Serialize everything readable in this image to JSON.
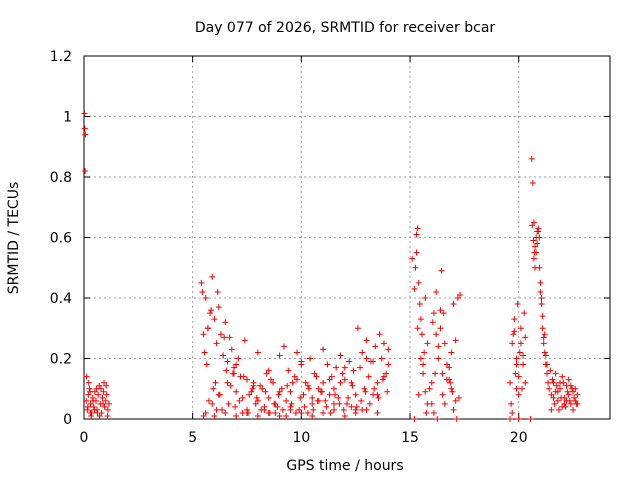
{
  "chart_data": {
    "type": "scatter",
    "title": "Day 077 of 2026, SRMTID for receiver bcar",
    "xlabel": "GPS time / hours",
    "ylabel": "SRMTID / TECUs",
    "xlim": [
      0,
      24.2
    ],
    "ylim": [
      0,
      1.2
    ],
    "grid": true,
    "marker": "+",
    "color": "#ff0000",
    "xticks": [
      0,
      5,
      10,
      15,
      20
    ],
    "xtick_labels": [
      "0",
      "5",
      "10",
      "15",
      "20"
    ],
    "yticks": [
      0,
      0.2,
      0.4,
      0.6,
      0.8,
      1,
      1.2
    ],
    "ytick_labels": [
      "0",
      "0.2",
      "0.4",
      "0.6",
      "0.8",
      "1",
      "1.2"
    ],
    "series": [
      {
        "name": "SRMTID",
        "x": [
          0.02,
          0.04,
          0.06,
          0.05,
          0.1,
          0.15,
          0.2,
          0.25,
          0.3,
          0.35,
          0.4,
          0.45,
          0.5,
          0.55,
          0.6,
          0.65,
          0.7,
          0.75,
          0.8,
          0.85,
          0.9,
          0.95,
          1.0,
          1.05,
          1.1,
          1.15,
          0.12,
          0.22,
          0.33,
          0.48,
          0.62,
          0.78,
          0.92,
          1.08,
          0.18,
          0.28,
          0.42,
          0.58,
          0.72,
          0.88,
          1.02,
          0.3,
          5.4,
          5.5,
          5.6,
          5.7,
          5.8,
          5.9,
          6.0,
          6.1,
          6.2,
          6.3,
          6.4,
          6.5,
          6.6,
          6.7,
          6.8,
          6.9,
          7.0,
          7.2,
          7.4,
          7.6,
          7.8,
          8.0,
          8.2,
          8.4,
          8.6,
          8.8,
          9.0,
          9.2,
          9.4,
          9.6,
          9.8,
          10.0,
          10.2,
          10.4,
          10.6,
          10.8,
          11.0,
          11.2,
          11.4,
          11.6,
          11.8,
          12.0,
          12.2,
          12.4,
          12.6,
          12.8,
          13.0,
          13.2,
          13.4,
          13.6,
          13.8,
          14.0,
          5.45,
          5.65,
          5.85,
          6.05,
          6.25,
          6.45,
          6.65,
          6.85,
          7.1,
          7.3,
          7.5,
          7.7,
          7.9,
          8.1,
          8.3,
          8.5,
          8.7,
          8.9,
          9.1,
          9.3,
          9.5,
          9.7,
          9.9,
          10.1,
          10.3,
          10.5,
          10.7,
          10.9,
          11.1,
          11.3,
          11.5,
          11.7,
          11.9,
          12.1,
          12.3,
          12.5,
          12.7,
          12.9,
          13.1,
          13.3,
          13.5,
          13.7,
          13.9,
          5.55,
          5.75,
          5.95,
          6.15,
          6.35,
          6.55,
          6.75,
          6.95,
          7.15,
          7.35,
          7.55,
          7.75,
          7.95,
          8.15,
          8.35,
          8.55,
          8.75,
          8.95,
          9.15,
          9.35,
          9.55,
          9.75,
          9.95,
          10.15,
          10.35,
          10.55,
          10.75,
          10.95,
          11.15,
          11.35,
          11.55,
          11.75,
          11.95,
          12.15,
          12.35,
          12.55,
          12.75,
          12.95,
          13.15,
          13.35,
          13.55,
          13.75,
          13.95,
          5.6,
          5.9,
          6.2,
          6.6,
          7.0,
          7.5,
          8.0,
          8.5,
          9.0,
          9.5,
          10.0,
          10.5,
          11.0,
          11.5,
          12.0,
          12.5,
          13.0,
          13.5,
          14.0,
          5.7,
          6.1,
          6.4,
          6.9,
          7.3,
          7.8,
          8.3,
          8.8,
          9.3,
          9.8,
          10.3,
          10.8,
          11.3,
          11.8,
          12.3,
          12.8,
          13.3,
          13.8,
          5.5,
          6.0,
          6.5,
          7.0,
          7.5,
          8.0,
          8.5,
          9.0,
          9.5,
          10.0,
          10.5,
          11.0,
          11.5,
          12.0,
          12.5,
          13.0,
          13.5,
          15.1,
          15.2,
          15.3,
          15.35,
          15.4,
          15.45,
          15.5,
          15.55,
          15.6,
          15.7,
          15.8,
          15.9,
          16.0,
          16.1,
          16.2,
          16.3,
          16.4,
          16.5,
          16.6,
          16.7,
          16.8,
          16.9,
          17.0,
          17.1,
          17.2,
          17.3,
          15.25,
          15.65,
          16.05,
          16.45,
          16.85,
          17.25,
          15.4,
          15.6,
          15.8,
          16.0,
          16.2,
          16.4,
          16.6,
          16.8,
          17.0,
          15.3,
          15.5,
          15.7,
          16.1,
          16.3,
          16.5,
          16.7,
          16.9,
          17.1,
          15.35,
          15.75,
          16.15,
          16.55,
          16.95,
          15.2,
          16.25,
          17.15,
          19.6,
          19.7,
          19.8,
          19.9,
          20.0,
          20.1,
          20.2,
          20.3,
          19.65,
          19.75,
          19.85,
          19.95,
          20.05,
          20.15,
          20.25,
          19.7,
          19.9,
          20.1,
          20.3,
          19.8,
          20.0,
          20.2,
          19.6,
          20.0,
          19.9,
          20.6,
          20.65,
          20.7,
          20.75,
          20.8,
          20.85,
          20.9,
          20.95,
          21.0,
          21.05,
          21.1,
          21.15,
          21.2,
          21.25,
          21.3,
          21.35,
          21.4,
          21.5,
          21.6,
          21.7,
          21.8,
          21.9,
          22.0,
          22.1,
          22.2,
          22.3,
          22.4,
          22.5,
          22.6,
          22.7,
          20.7,
          20.8,
          20.9,
          21.0,
          21.1,
          21.2,
          21.3,
          21.45,
          21.55,
          21.65,
          21.75,
          21.85,
          21.95,
          22.05,
          22.15,
          22.25,
          22.35,
          22.45,
          22.55,
          22.65,
          20.75,
          20.85,
          20.95,
          21.05,
          21.15,
          21.25,
          21.6,
          21.8,
          22.0,
          22.2,
          22.4,
          22.6,
          20.62,
          20.72,
          21.5,
          21.7,
          21.9,
          22.1,
          22.3,
          22.5,
          22.7,
          20.68,
          20.55
        ],
        "y": [
          1.01,
          0.96,
          0.94,
          0.82,
          0.06,
          0.03,
          0.08,
          0.1,
          0.05,
          0.02,
          0.07,
          0.04,
          0.09,
          0.06,
          0.03,
          0.08,
          0.11,
          0.05,
          0.02,
          0.07,
          0.09,
          0.04,
          0.06,
          0.08,
          0.03,
          0.05,
          0.14,
          0.12,
          0.01,
          0.03,
          0.02,
          0.1,
          0.12,
          0.01,
          0.04,
          0.09,
          0.06,
          0.1,
          0.01,
          0.05,
          0.11,
          0.02,
          0.45,
          0.28,
          0.4,
          0.3,
          0.35,
          0.47,
          0.33,
          0.25,
          0.37,
          0.28,
          0.21,
          0.32,
          0.19,
          0.27,
          0.23,
          0.17,
          0.18,
          0.14,
          0.26,
          0.08,
          0.12,
          0.22,
          0.1,
          0.15,
          0.13,
          0.05,
          0.09,
          0.24,
          0.16,
          0.12,
          0.22,
          0.18,
          0.12,
          0.2,
          0.15,
          0.1,
          0.12,
          0.18,
          0.14,
          0.17,
          0.21,
          0.13,
          0.19,
          0.16,
          0.3,
          0.22,
          0.26,
          0.19,
          0.24,
          0.28,
          0.25,
          0.23,
          0.42,
          0.18,
          0.36,
          0.12,
          0.08,
          0.27,
          0.05,
          0.15,
          0.2,
          0.07,
          0.13,
          0.09,
          0.05,
          0.11,
          0.03,
          0.07,
          0.12,
          0.04,
          0.1,
          0.06,
          0.09,
          0.14,
          0.03,
          0.08,
          0.11,
          0.05,
          0.14,
          0.09,
          0.06,
          0.13,
          0.1,
          0.07,
          0.15,
          0.05,
          0.12,
          0.08,
          0.17,
          0.1,
          0.14,
          0.19,
          0.12,
          0.2,
          0.15,
          0.22,
          0.06,
          0.1,
          0.42,
          0.03,
          0.16,
          0.11,
          0.04,
          0.06,
          0.14,
          0.02,
          0.1,
          0.07,
          0.03,
          0.09,
          0.02,
          0.05,
          0.08,
          0.03,
          0.11,
          0.05,
          0.02,
          0.07,
          0.04,
          0.1,
          0.03,
          0.06,
          0.09,
          0.04,
          0.02,
          0.08,
          0.05,
          0.03,
          0.07,
          0.11,
          0.04,
          0.06,
          0.09,
          0.05,
          0.1,
          0.07,
          0.13,
          0.09,
          0.02,
          0.05,
          0.08,
          0.12,
          0.09,
          0.02,
          0.06,
          0.16,
          0.21,
          0.04,
          0.19,
          0.07,
          0.23,
          0.05,
          0.17,
          0.03,
          0.2,
          0.08,
          0.18,
          0.3,
          0.03,
          0.21,
          0.15,
          0.02,
          0.11,
          0.04,
          0.02,
          0.01,
          0.13,
          0.02,
          0.06,
          0.08,
          0.12,
          0.04,
          0.03,
          0.08,
          0.14,
          0.01,
          0.01,
          0.02,
          0.01,
          0.03,
          0.01,
          0.02,
          0.01,
          0.03,
          0.02,
          0.01,
          0.02,
          0.03,
          0.01,
          0.02,
          0.03,
          0.02,
          0.53,
          0.43,
          0.61,
          0.63,
          0.45,
          0.38,
          0.33,
          0.28,
          0.15,
          0.4,
          0.25,
          0.1,
          0.05,
          0.35,
          0.42,
          0.2,
          0.3,
          0.15,
          0.25,
          0.18,
          0.13,
          0.1,
          0.38,
          0.26,
          0.4,
          0.41,
          0.5,
          0.22,
          0.32,
          0.49,
          0.12,
          0.07,
          0.08,
          0.18,
          0.05,
          0.12,
          0.28,
          0.36,
          0.05,
          0.17,
          0.03,
          0.55,
          0.2,
          0.09,
          0.02,
          0.24,
          0.08,
          0.13,
          0.22,
          0.06,
          0.3,
          0.02,
          0.15,
          0.35,
          0.09,
          0.0,
          0.0,
          0.0,
          0.12,
          0.25,
          0.33,
          0.2,
          0.08,
          0.3,
          0.18,
          0.27,
          0.05,
          0.28,
          0.15,
          0.38,
          0.22,
          0.1,
          0.35,
          0.02,
          0.18,
          0.25,
          0.12,
          0.29,
          0.14,
          0.21,
          0.0,
          0.0,
          0.1,
          0.86,
          0.78,
          0.65,
          0.5,
          0.55,
          0.58,
          0.62,
          0.6,
          0.45,
          0.38,
          0.3,
          0.25,
          0.22,
          0.18,
          0.15,
          0.12,
          0.1,
          0.08,
          0.12,
          0.09,
          0.06,
          0.1,
          0.14,
          0.07,
          0.11,
          0.08,
          0.05,
          0.09,
          0.06,
          0.08,
          0.53,
          0.6,
          0.63,
          0.42,
          0.34,
          0.28,
          0.18,
          0.16,
          0.13,
          0.05,
          0.11,
          0.03,
          0.07,
          0.12,
          0.04,
          0.09,
          0.06,
          0.1,
          0.07,
          0.05,
          0.57,
          0.62,
          0.5,
          0.4,
          0.27,
          0.21,
          0.07,
          0.09,
          0.04,
          0.06,
          0.11,
          0.1,
          0.64,
          0.55,
          0.03,
          0.15,
          0.12,
          0.05,
          0.13,
          0.03,
          0.05,
          0.59,
          0.0
        ]
      }
    ]
  }
}
